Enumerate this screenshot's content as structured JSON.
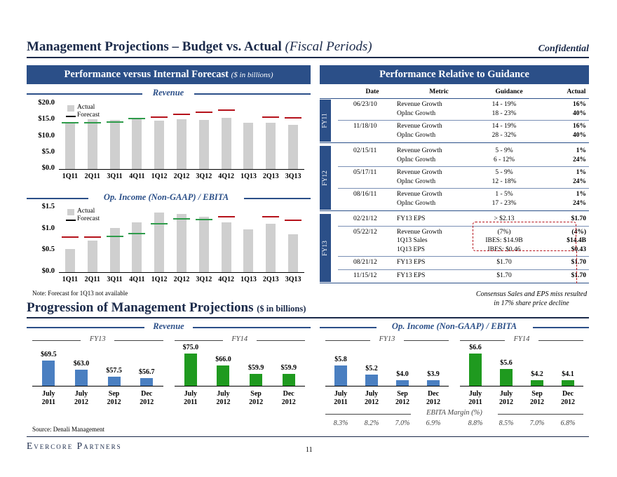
{
  "header": {
    "title": "Management Projections – Budget vs. Actual",
    "title_sub": "(Fiscal Periods)",
    "confidential": "Confidential"
  },
  "left_banner": {
    "title": "Performance versus Internal Forecast",
    "sub": "($ in billions)"
  },
  "right_banner": {
    "title": "Performance Relative to Guidance"
  },
  "chart_data": [
    {
      "type": "bar",
      "title": "Revenue",
      "categories": [
        "1Q11",
        "2Q11",
        "3Q11",
        "4Q11",
        "1Q12",
        "2Q12",
        "3Q12",
        "4Q12",
        "1Q13",
        "2Q13",
        "3Q13"
      ],
      "series": [
        {
          "name": "Actual",
          "values": [
            14.5,
            15.2,
            15.0,
            15.2,
            14.8,
            15.3,
            15.0,
            15.8,
            14.2,
            14.3,
            13.6
          ]
        },
        {
          "name": "Forecast",
          "values": [
            14.3,
            14.3,
            14.5,
            15.4,
            16.0,
            16.8,
            17.4,
            18.0,
            null,
            15.9,
            15.6
          ]
        }
      ],
      "yticks": [
        "$0.0",
        "$5.0",
        "$10.0",
        "$15.0",
        "$20.0"
      ],
      "ylim": [
        0,
        20
      ],
      "legend": [
        "Actual",
        "Forecast"
      ]
    },
    {
      "type": "bar",
      "title": "Op. Income (Non-GAAP) / EBITA",
      "categories": [
        "1Q11",
        "2Q11",
        "3Q11",
        "4Q11",
        "1Q12",
        "2Q12",
        "3Q12",
        "4Q12",
        "1Q13",
        "2Q13",
        "3Q13"
      ],
      "series": [
        {
          "name": "Actual",
          "values": [
            0.53,
            0.73,
            1.03,
            1.15,
            1.38,
            1.35,
            1.29,
            1.15,
            1.0,
            1.13,
            0.88
          ]
        },
        {
          "name": "Forecast",
          "values": [
            0.82,
            0.82,
            0.83,
            0.9,
            1.13,
            1.24,
            1.22,
            1.28,
            null,
            1.28,
            1.2
          ]
        }
      ],
      "yticks": [
        "$0.0",
        "$0.5",
        "$1.0",
        "$1.5"
      ],
      "ylim": [
        0,
        1.5
      ],
      "legend": [
        "Actual",
        "Forecast"
      ]
    }
  ],
  "note": "Note: Forecast for 1Q13 not available",
  "guidance": {
    "headers": [
      "Date",
      "Metric",
      "Guidance",
      "Actual"
    ],
    "groups": [
      {
        "fy": "FY11",
        "rows": [
          {
            "date": "06/23/10",
            "metric": "Revenue Growth",
            "guidance": "14 - 19%",
            "actual": "16%"
          },
          {
            "date": "",
            "metric": "OpInc Growth",
            "guidance": "18 - 23%",
            "actual": "40%"
          },
          {
            "date": "11/18/10",
            "metric": "Revenue Growth",
            "guidance": "14 - 19%",
            "actual": "16%"
          },
          {
            "date": "",
            "metric": "OpInc Growth",
            "guidance": "28 - 32%",
            "actual": "40%"
          }
        ]
      },
      {
        "fy": "FY12",
        "rows": [
          {
            "date": "02/15/11",
            "metric": "Revenue Growth",
            "guidance": "5 - 9%",
            "actual": "1%"
          },
          {
            "date": "",
            "metric": "OpInc Growth",
            "guidance": "6 - 12%",
            "actual": "24%"
          },
          {
            "date": "05/17/11",
            "metric": "Revenue Growth",
            "guidance": "5 - 9%",
            "actual": "1%"
          },
          {
            "date": "",
            "metric": "OpInc Growth",
            "guidance": "12 - 18%",
            "actual": "24%"
          },
          {
            "date": "08/16/11",
            "metric": "Revenue Growth",
            "guidance": "1 - 5%",
            "actual": "1%"
          },
          {
            "date": "",
            "metric": "OpInc Growth",
            "guidance": "17 - 23%",
            "actual": "24%"
          }
        ]
      },
      {
        "fy": "FY13",
        "rows": [
          {
            "date": "02/21/12",
            "metric": "FY13 EPS",
            "guidance": "> $2.13",
            "actual": "$1.70"
          },
          {
            "date": "05/22/12",
            "metric": "Revenue Growth",
            "guidance": "(7%)",
            "actual": "(4%)"
          },
          {
            "date": "",
            "metric": "1Q13 Sales",
            "guidance": "IBES: $14.9B",
            "actual": "$14.4B"
          },
          {
            "date": "",
            "metric": "1Q13 EPS",
            "guidance": "IBES: $0.46",
            "actual": "$0.43"
          },
          {
            "date": "08/21/12",
            "metric": "FY13 EPS",
            "guidance": "$1.70",
            "actual": "$1.70"
          },
          {
            "date": "11/15/12",
            "metric": "FY13 EPS",
            "guidance": "$1.70",
            "actual": "$1.70"
          }
        ]
      }
    ],
    "callout": "Consensus Sales and EPS miss resulted in 17% share price decline"
  },
  "progression": {
    "title": "Progression of Management Projections",
    "sub": "($ in billions)",
    "revenue": {
      "title": "Revenue",
      "groups": [
        {
          "label": "FY13",
          "color": "#4a7fc1",
          "values": [
            69.5,
            63.0,
            57.5,
            56.7
          ],
          "labels": [
            "$69.5",
            "$63.0",
            "$57.5",
            "$56.7"
          ]
        },
        {
          "label": "FY14",
          "color": "#1f9a1f",
          "values": [
            75.0,
            66.0,
            59.9,
            59.9
          ],
          "labels": [
            "$75.0",
            "$66.0",
            "$59.9",
            "$59.9"
          ]
        }
      ]
    },
    "opinc": {
      "title": "Op. Income (Non-GAAP) / EBITA",
      "groups": [
        {
          "label": "FY13",
          "color": "#4a7fc1",
          "values": [
            5.8,
            5.2,
            4.0,
            3.9
          ],
          "labels": [
            "$5.8",
            "$5.2",
            "$4.0",
            "$3.9"
          ]
        },
        {
          "label": "FY14",
          "color": "#1f9a1f",
          "values": [
            6.6,
            5.6,
            4.2,
            4.1
          ],
          "labels": [
            "$6.6",
            "$5.6",
            "$4.2",
            "$4.1"
          ]
        }
      ],
      "margin_title": "EBITA Margin (%)",
      "margins": [
        "8.3%",
        "8.2%",
        "7.0%",
        "6.9%",
        "8.8%",
        "8.5%",
        "7.0%",
        "6.8%"
      ]
    },
    "dates": [
      {
        "m": "July",
        "y": "2011"
      },
      {
        "m": "July",
        "y": "2012"
      },
      {
        "m": "Sep",
        "y": "2012"
      },
      {
        "m": "Dec",
        "y": "2012"
      }
    ]
  },
  "source": "Source: Denali Management",
  "footer": {
    "brand": "Evercore Partners",
    "page": "11"
  }
}
